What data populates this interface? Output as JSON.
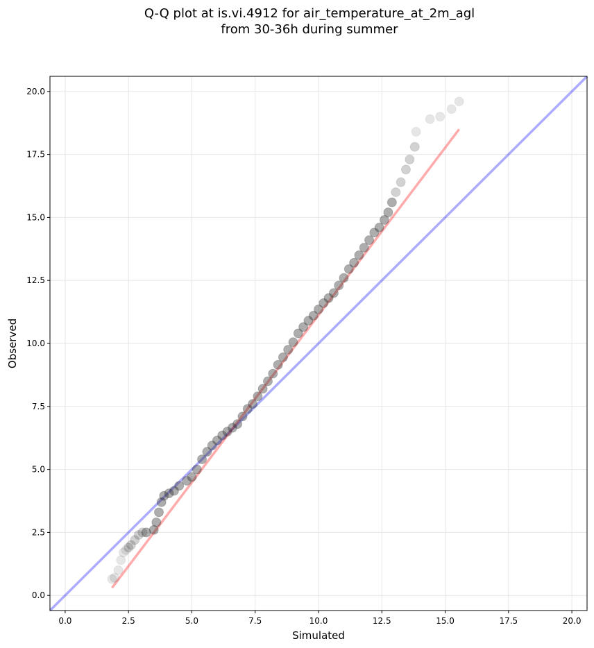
{
  "chart_data": {
    "type": "scatter",
    "title": "Q-Q plot at is.vi.4912 for air_temperature_at_2m_agl",
    "subtitle": "from 30-36h during summer",
    "xlabel": "Simulated",
    "ylabel": "Observed",
    "xlim": [
      -0.6,
      20.6
    ],
    "ylim": [
      -0.6,
      20.6
    ],
    "xticks": [
      "0.0",
      "2.5",
      "5.0",
      "7.5",
      "10.0",
      "12.5",
      "15.0",
      "17.5",
      "20.0"
    ],
    "yticks": [
      "0.0",
      "2.5",
      "5.0",
      "7.5",
      "10.0",
      "12.5",
      "15.0",
      "17.5",
      "20.0"
    ],
    "grid": true,
    "colors": {
      "points": "#333333",
      "identity_line": "#0000ff",
      "fit_line": "#ff0000"
    },
    "identity_line": {
      "x": [
        -0.6,
        20.6
      ],
      "y": [
        -0.6,
        20.6
      ]
    },
    "fit_line": {
      "x": [
        1.85,
        15.55
      ],
      "y": [
        0.3,
        18.5
      ]
    },
    "quantiles": {
      "x": [
        1.85,
        1.95,
        2.1,
        2.2,
        2.3,
        2.4,
        2.5,
        2.6,
        2.75,
        2.9,
        3.05,
        3.2,
        3.5,
        3.6,
        3.7,
        3.8,
        3.9,
        4.1,
        4.3,
        4.5,
        4.8,
        5.0,
        5.2,
        5.4,
        5.6,
        5.8,
        6.0,
        6.2,
        6.4,
        6.6,
        6.8,
        7.0,
        7.2,
        7.4,
        7.6,
        7.8,
        8.0,
        8.2,
        8.4,
        8.6,
        8.8,
        9.0,
        9.2,
        9.4,
        9.6,
        9.8,
        10.0,
        10.2,
        10.4,
        10.6,
        10.8,
        11.0,
        11.2,
        11.4,
        11.6,
        11.8,
        12.0,
        12.2,
        12.4,
        12.6,
        12.75,
        12.9,
        13.05,
        13.25,
        13.45,
        13.6,
        13.8,
        13.85,
        14.4,
        14.8,
        15.25,
        15.55
      ],
      "y": [
        0.65,
        0.7,
        1.0,
        1.4,
        1.7,
        1.8,
        1.9,
        2.0,
        2.2,
        2.4,
        2.5,
        2.5,
        2.6,
        2.9,
        3.3,
        3.7,
        3.95,
        4.05,
        4.15,
        4.35,
        4.55,
        4.7,
        5.0,
        5.4,
        5.7,
        5.95,
        6.15,
        6.35,
        6.5,
        6.65,
        6.8,
        7.1,
        7.4,
        7.6,
        7.9,
        8.2,
        8.5,
        8.8,
        9.15,
        9.45,
        9.75,
        10.05,
        10.4,
        10.65,
        10.9,
        11.1,
        11.35,
        11.6,
        11.8,
        12.0,
        12.3,
        12.6,
        12.95,
        13.2,
        13.5,
        13.8,
        14.1,
        14.4,
        14.6,
        14.9,
        15.2,
        15.6,
        16.0,
        16.4,
        16.9,
        17.3,
        17.8,
        18.4,
        18.9,
        19.0,
        19.3,
        19.6
      ]
    }
  }
}
